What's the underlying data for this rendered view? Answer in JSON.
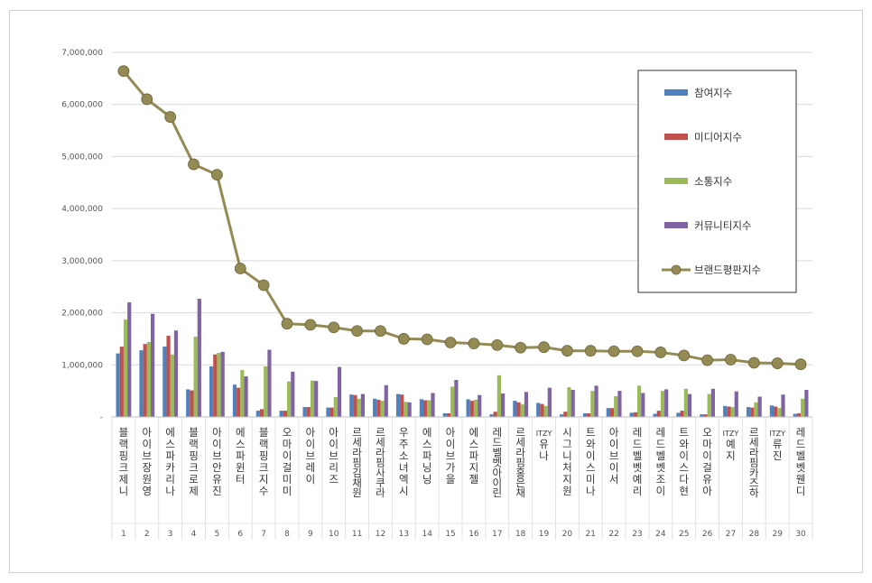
{
  "chart_data": {
    "type": "bar",
    "ylim": [
      0,
      7000000
    ],
    "y_ticks": [
      {
        "value": 0,
        "label": "-"
      },
      {
        "value": 1000000,
        "label": "1,000,000"
      },
      {
        "value": 2000000,
        "label": "2,000,000"
      },
      {
        "value": 3000000,
        "label": "3,000,000"
      },
      {
        "value": 4000000,
        "label": "4,000,000"
      },
      {
        "value": 5000000,
        "label": "5,000,000"
      },
      {
        "value": 6000000,
        "label": "6,000,000"
      },
      {
        "value": 7000000,
        "label": "7,000,000"
      }
    ],
    "grid": true,
    "legend_position": "top-right",
    "categories": [
      "블랙핑크 제니",
      "아이브 장원영",
      "에스파 카리나",
      "블랙핑크 로제",
      "아이브 안유진",
      "에스파 윈터",
      "블랙핑크 지수",
      "오마이걸 미미",
      "아이브 레이",
      "아이브 리즈",
      "르세라핌 김채원",
      "르세라핌 사쿠라",
      "우주소녀 엑시",
      "에스파 닝닝",
      "아이브 가을",
      "에스파 지젤",
      "레드벨벳 아이린",
      "르세라핌 홍은채",
      "ITZY 유나",
      "시그니처 지원",
      "트와이스 미나",
      "아이브 이서",
      "레드벨벳 예리",
      "레드벨벳 조이",
      "트와이스 다현",
      "오마이걸 유아",
      "ITZY 예지",
      "르세라핌 카즈하",
      "ITZY 류진",
      "레드벨벳 웬디"
    ],
    "category_labels": [
      "블랙핑크제니",
      "아이브장원영",
      "에스파카리나",
      "블랙핑크로제",
      "아이브안유진",
      "에스파윈터",
      "블랙핑크지수",
      "오마이걸미미",
      "아이브레이",
      "아이브리즈",
      "르세라핌김채원",
      "르세라핌사쿠라",
      "우주소녀엑시",
      "에스파닝닝",
      "아이브가을",
      "에스파지젤",
      "레드벨벳아이린",
      "르세라핌홍은채",
      "ITZY유나",
      "시그니처지원",
      "트와이스미나",
      "아이브이서",
      "레드벨벳예리",
      "레드벨벳조이",
      "트와이스다현",
      "오마이걸유아",
      "ITZY예지",
      "르세라핌카즈하",
      "ITZY류진",
      "레드벨벳웬디"
    ],
    "ranks": [
      "1",
      "2",
      "3",
      "4",
      "5",
      "6",
      "7",
      "8",
      "9",
      "10",
      "11",
      "12",
      "13",
      "14",
      "15",
      "16",
      "17",
      "18",
      "19",
      "20",
      "21",
      "22",
      "23",
      "24",
      "25",
      "26",
      "27",
      "28",
      "29",
      "30"
    ],
    "series": [
      {
        "name": "참여지수",
        "type": "bar",
        "color": "#4f81bd",
        "values": [
          1220000,
          1280000,
          1350000,
          530000,
          970000,
          620000,
          120000,
          120000,
          190000,
          180000,
          430000,
          350000,
          440000,
          340000,
          70000,
          340000,
          50000,
          310000,
          270000,
          50000,
          70000,
          170000,
          80000,
          60000,
          80000,
          50000,
          210000,
          190000,
          220000,
          60000
        ]
      },
      {
        "name": "미디어지수",
        "type": "bar",
        "color": "#c0504d",
        "values": [
          1350000,
          1400000,
          1560000,
          510000,
          1200000,
          560000,
          150000,
          120000,
          190000,
          180000,
          420000,
          330000,
          430000,
          320000,
          70000,
          310000,
          100000,
          280000,
          250000,
          100000,
          70000,
          170000,
          90000,
          120000,
          120000,
          50000,
          200000,
          180000,
          200000,
          70000
        ]
      },
      {
        "name": "소통지수",
        "type": "bar",
        "color": "#9bbb59",
        "values": [
          1870000,
          1440000,
          1200000,
          1540000,
          1230000,
          900000,
          970000,
          680000,
          700000,
          380000,
          350000,
          310000,
          290000,
          320000,
          580000,
          330000,
          800000,
          240000,
          210000,
          570000,
          500000,
          400000,
          600000,
          500000,
          540000,
          440000,
          190000,
          280000,
          170000,
          350000
        ]
      },
      {
        "name": "커뮤니티지수",
        "type": "bar",
        "color": "#8064a2",
        "values": [
          2200000,
          1980000,
          1660000,
          2270000,
          1250000,
          780000,
          1290000,
          870000,
          690000,
          960000,
          440000,
          610000,
          280000,
          460000,
          710000,
          420000,
          450000,
          480000,
          560000,
          520000,
          600000,
          500000,
          460000,
          530000,
          440000,
          540000,
          490000,
          390000,
          430000,
          520000
        ]
      },
      {
        "name": "브랜드평판지수",
        "type": "line",
        "color": "#948a54",
        "values": [
          6640000,
          6100000,
          5760000,
          4850000,
          4650000,
          2850000,
          2530000,
          1790000,
          1770000,
          1720000,
          1650000,
          1650000,
          1500000,
          1490000,
          1430000,
          1410000,
          1380000,
          1330000,
          1340000,
          1270000,
          1270000,
          1260000,
          1260000,
          1240000,
          1180000,
          1090000,
          1100000,
          1040000,
          1030000,
          1010000
        ]
      }
    ]
  }
}
